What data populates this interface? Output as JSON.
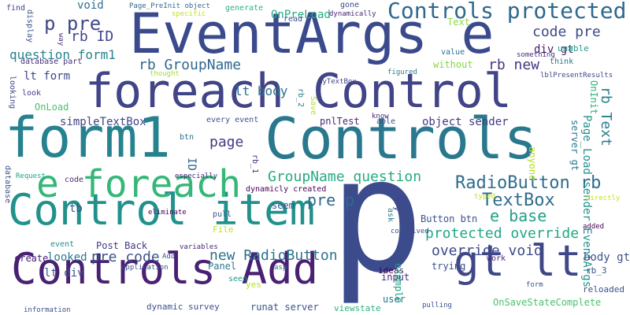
{
  "words": [
    {
      "text": "p",
      "color": "#3b4b8c"
    },
    {
      "text": "Controls",
      "color": "#2a788e"
    },
    {
      "text": "EventArgs e",
      "color": "#3a4a8c"
    },
    {
      "text": "foreach Control",
      "color": "#414487"
    },
    {
      "text": "form1",
      "color": "#26828e"
    },
    {
      "text": "Control item",
      "color": "#21918c"
    },
    {
      "text": "Controls Add",
      "color": "#482173"
    },
    {
      "text": "gt lt",
      "color": "#3f4788"
    },
    {
      "text": "e foreach",
      "color": "#35b779"
    },
    {
      "text": "Controls protected",
      "color": "#31688e"
    },
    {
      "text": "p pre",
      "color": "#3e4989"
    },
    {
      "text": "rb ID",
      "color": "#404588"
    },
    {
      "text": "question form1",
      "color": "#26828e"
    },
    {
      "text": "code pre",
      "color": "#3e4a89"
    },
    {
      "text": "rb GroupName",
      "color": "#31688e"
    },
    {
      "text": "rb new",
      "color": "#453781"
    },
    {
      "text": "div gt",
      "color": "#48186a"
    },
    {
      "text": "lt body",
      "color": "#2c728e"
    },
    {
      "text": "lt form",
      "color": "#404588"
    },
    {
      "text": "RadioButton rb",
      "color": "#2f6c8e"
    },
    {
      "text": "TextBox",
      "color": "#2f6c8e"
    },
    {
      "text": "pre p",
      "color": "#31688e"
    },
    {
      "text": "e base",
      "color": "#1fa088"
    },
    {
      "text": "GroupName question",
      "color": "#25ab82"
    },
    {
      "text": "protected override",
      "color": "#21a685"
    },
    {
      "text": "override void",
      "color": "#3e4989"
    },
    {
      "text": "new RadioButton",
      "color": "#2c728e"
    },
    {
      "text": "pre code",
      "color": "#3b528b"
    },
    {
      "text": "page",
      "color": "#443983"
    },
    {
      "text": "simpleTextBox",
      "color": "#404588"
    },
    {
      "text": "rb Text",
      "color": "#277f8e"
    },
    {
      "text": "Page_Load sender EventArgs",
      "color": "#21918c"
    },
    {
      "text": "OnInit",
      "color": "#2db27d"
    },
    {
      "text": "server gt",
      "color": "#2a788e"
    },
    {
      "text": "OnPreLoad",
      "color": "#25ab82"
    },
    {
      "text": "void",
      "color": "#2c728e"
    },
    {
      "text": "lt div",
      "color": "#3b528b"
    },
    {
      "text": "body gt",
      "color": "#3b528b"
    },
    {
      "text": "pnlTest",
      "color": "#482878"
    },
    {
      "text": "object sender",
      "color": "#443a83"
    },
    {
      "text": "Button btn",
      "color": "#3b528b"
    },
    {
      "text": "input",
      "color": "#472d7b"
    },
    {
      "text": "user",
      "color": "#2a788e"
    },
    {
      "text": "seem",
      "color": "#3b528b"
    },
    {
      "text": "create",
      "color": "#482173"
    },
    {
      "text": "OnLoad",
      "color": "#4ac16d"
    },
    {
      "text": "Text",
      "color": "#8fd744"
    },
    {
      "text": "without",
      "color": "#86d549"
    },
    {
      "text": "database part",
      "color": "#472d7b"
    },
    {
      "text": "find",
      "color": "#414487"
    },
    {
      "text": "generate",
      "color": "#2db27d"
    },
    {
      "text": "gone",
      "color": "#3e4989"
    },
    {
      "text": "read",
      "color": "#3b528b"
    },
    {
      "text": "Page_PreInit object",
      "color": "#31688e"
    },
    {
      "text": "dynamically",
      "color": "#482475"
    },
    {
      "text": "specific",
      "color": "#c2df23"
    },
    {
      "text": "value",
      "color": "#2c728e"
    },
    {
      "text": "figured",
      "color": "#2a788e"
    },
    {
      "text": "myTextBox",
      "color": "#414487"
    },
    {
      "text": "lblPresentResults",
      "color": "#3e4989"
    },
    {
      "text": "something",
      "color": "#472d7b"
    },
    {
      "text": "unable",
      "color": "#1f9e89"
    },
    {
      "text": "think",
      "color": "#2a788e"
    },
    {
      "text": "thought",
      "color": "#a5db36"
    },
    {
      "text": "look",
      "color": "#443a83"
    },
    {
      "text": "looking",
      "color": "#3e4989"
    },
    {
      "text": "display",
      "color": "#3b528b"
    },
    {
      "text": "way",
      "color": "#472d7b"
    },
    {
      "text": "rb_2",
      "color": "#2a788e"
    },
    {
      "text": "Save",
      "color": "#b5de2b"
    },
    {
      "text": "know",
      "color": "#482878"
    },
    {
      "text": "able",
      "color": "#3b528b"
    },
    {
      "text": "every event",
      "color": "#3b528b"
    },
    {
      "text": "btn",
      "color": "#2c728e"
    },
    {
      "text": "ID",
      "color": "#31688e"
    },
    {
      "text": "rb_1",
      "color": "#482878"
    },
    {
      "text": "anyone",
      "color": "#b5de2b"
    },
    {
      "text": "dynamicly created",
      "color": "#440154"
    },
    {
      "text": "tb",
      "color": "#3b528b"
    },
    {
      "text": "database",
      "color": "#3b528b"
    },
    {
      "text": "Request",
      "color": "#1fa088"
    },
    {
      "text": "especially",
      "color": "#482475"
    },
    {
      "text": "eliminate",
      "color": "#440154"
    },
    {
      "text": "pull",
      "color": "#3b528b"
    },
    {
      "text": "File",
      "color": "#bddf26"
    },
    {
      "text": "code",
      "color": "#482878"
    },
    {
      "text": "ask",
      "color": "#2a788e"
    },
    {
      "text": "try",
      "color": "#414487"
    },
    {
      "text": "contrived",
      "color": "#3b528b"
    },
    {
      "text": "typed",
      "color": "#bddf26"
    },
    {
      "text": "directly",
      "color": "#c8e020"
    },
    {
      "text": "added",
      "color": "#440154"
    },
    {
      "text": "event",
      "color": "#21918c"
    },
    {
      "text": "Post Back",
      "color": "#443a83"
    },
    {
      "text": "looked",
      "color": "#2a788e"
    },
    {
      "text": "variables",
      "color": "#482878"
    },
    {
      "text": "Add",
      "color": "#3b528b"
    },
    {
      "text": "application",
      "color": "#3b528b"
    },
    {
      "text": "asp",
      "color": "#2a788e"
    },
    {
      "text": "Panel",
      "color": "#2a788e"
    },
    {
      "text": "seen",
      "color": "#1f9e89"
    },
    {
      "text": "yes",
      "color": "#b5de2b"
    },
    {
      "text": "ideas",
      "color": "#440154"
    },
    {
      "text": "example",
      "color": "#1fa088"
    },
    {
      "text": "trying",
      "color": "#3b528b"
    },
    {
      "text": "work",
      "color": "#482878"
    },
    {
      "text": "form",
      "color": "#3b528b"
    },
    {
      "text": "rb_3",
      "color": "#3b528b"
    },
    {
      "text": "reloaded",
      "color": "#3b528b"
    },
    {
      "text": "OnSaveStateComplete",
      "color": "#4ac16d"
    },
    {
      "text": "dynamic survey",
      "color": "#3b528b"
    },
    {
      "text": "runat server",
      "color": "#3b528b"
    },
    {
      "text": "viewstate",
      "color": "#2db27d"
    },
    {
      "text": "pulling",
      "color": "#3b528b"
    },
    {
      "text": "information",
      "color": "#3b528b"
    }
  ]
}
